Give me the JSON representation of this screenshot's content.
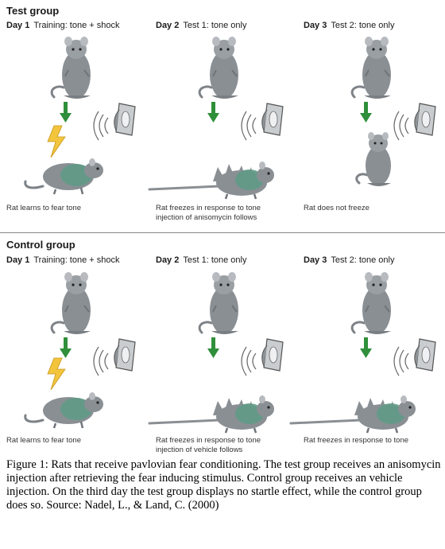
{
  "test": {
    "title": "Test group",
    "days": [
      {
        "day": "Day 1",
        "label": "Training: tone + shock"
      },
      {
        "day": "Day 2",
        "label": "Test 1: tone only"
      },
      {
        "day": "Day 3",
        "label": "Test 2: tone only"
      }
    ],
    "captions": [
      [
        "Rat learns to fear tone"
      ],
      [
        "Rat freezes in response to tone",
        "injection of anisomycin follows"
      ],
      [
        "Rat does not freeze"
      ]
    ]
  },
  "control": {
    "title": "Control group",
    "days": [
      {
        "day": "Day 1",
        "label": "Training: tone + shock"
      },
      {
        "day": "Day 2",
        "label": "Test 1: tone only"
      },
      {
        "day": "Day 3",
        "label": "Test 2: tone only"
      }
    ],
    "captions": [
      [
        "Rat learns to fear tone"
      ],
      [
        "Rat freezes in response to tone",
        "injection of vehicle follows"
      ],
      [
        "Rat freezes in response to tone"
      ]
    ]
  },
  "figure_caption": "Figure 1:  Rats that receive pavlovian fear conditioning. The test group receives an anisomycin injection after retrieving the fear inducing stimulus. Control group receives an vehicle injection. On the third day the test group displays no startle effect, while the control group does so. Source: Nadel, L., & Land, C. (2000)",
  "colors": {
    "rat": "#8a8f94",
    "fear": "#5f9a86",
    "arrow": "#2f8f3a",
    "bolt": "#f2c53d"
  }
}
